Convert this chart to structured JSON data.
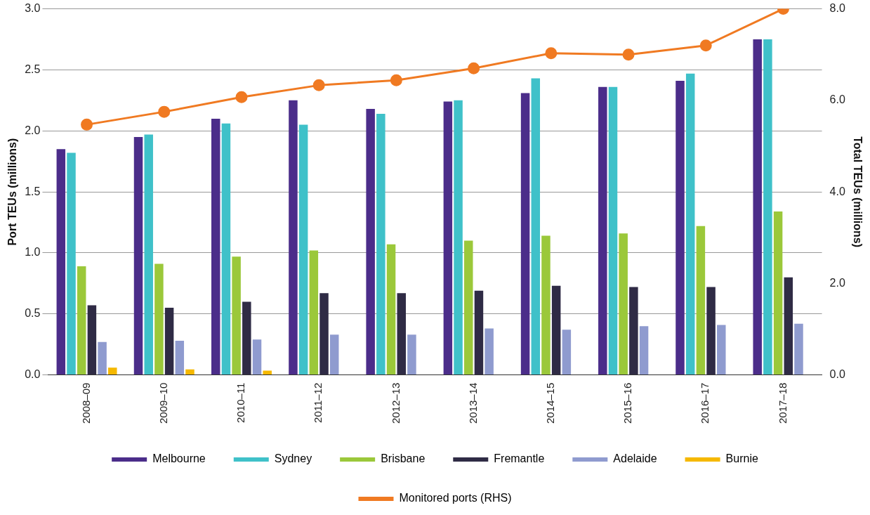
{
  "chart_data": {
    "type": "bar",
    "ylabel": "Port TEUs (millions)",
    "y2label": "Total TEUs (millions)",
    "categories": [
      "2008–09",
      "2009–10",
      "2010–11",
      "2011–12",
      "2012–13",
      "2013–14",
      "2014–15",
      "2015–16",
      "2016–17",
      "2017–18"
    ],
    "series": [
      {
        "name": "Melbourne",
        "color": "#4b2d8a",
        "values": [
          1.85,
          1.95,
          2.1,
          2.25,
          2.18,
          2.24,
          2.31,
          2.36,
          2.41,
          2.75
        ]
      },
      {
        "name": "Sydney",
        "color": "#3fc1c9",
        "values": [
          1.82,
          1.97,
          2.06,
          2.05,
          2.14,
          2.25,
          2.43,
          2.36,
          2.47,
          2.75
        ]
      },
      {
        "name": "Brisbane",
        "color": "#9bc83a",
        "values": [
          0.89,
          0.91,
          0.97,
          1.02,
          1.07,
          1.1,
          1.14,
          1.16,
          1.22,
          1.34
        ]
      },
      {
        "name": "Fremantle",
        "color": "#2f2b45",
        "values": [
          0.57,
          0.55,
          0.6,
          0.67,
          0.67,
          0.69,
          0.73,
          0.72,
          0.72,
          0.8
        ]
      },
      {
        "name": "Adelaide",
        "color": "#8f9bcf",
        "values": [
          0.27,
          0.28,
          0.29,
          0.33,
          0.33,
          0.38,
          0.37,
          0.4,
          0.41,
          0.42
        ]
      },
      {
        "name": "Burnie",
        "color": "#f5b800",
        "values": [
          0.06,
          0.045,
          0.035,
          null,
          null,
          null,
          null,
          null,
          null,
          null
        ]
      },
      {
        "name": "Monitored ports (RHS)",
        "type": "line",
        "axis": "y2",
        "color": "#f07a22",
        "marker": "circle",
        "values": [
          5.47,
          5.75,
          6.07,
          6.33,
          6.44,
          6.7,
          7.03,
          7.0,
          7.2,
          8.0
        ]
      }
    ],
    "ylim": [
      0,
      3
    ],
    "yticks": [
      {
        "value": 0,
        "label": "0.0"
      },
      {
        "value": 0.5,
        "label": "0.5"
      },
      {
        "value": 1,
        "label": "1.0"
      },
      {
        "value": 1.5,
        "label": "1.5"
      },
      {
        "value": 2,
        "label": "2.0"
      },
      {
        "value": 2.5,
        "label": "2.5"
      },
      {
        "value": 3,
        "label": "3.0"
      }
    ],
    "y2lim": [
      0,
      8
    ],
    "y2ticks": [
      {
        "value": 0,
        "label": "0.0"
      },
      {
        "value": 2,
        "label": "2.0"
      },
      {
        "value": 4,
        "label": "4.0"
      },
      {
        "value": 6,
        "label": "6.0"
      },
      {
        "value": 8,
        "label": "8.0"
      }
    ],
    "grid": "y",
    "legend": "bottom"
  }
}
